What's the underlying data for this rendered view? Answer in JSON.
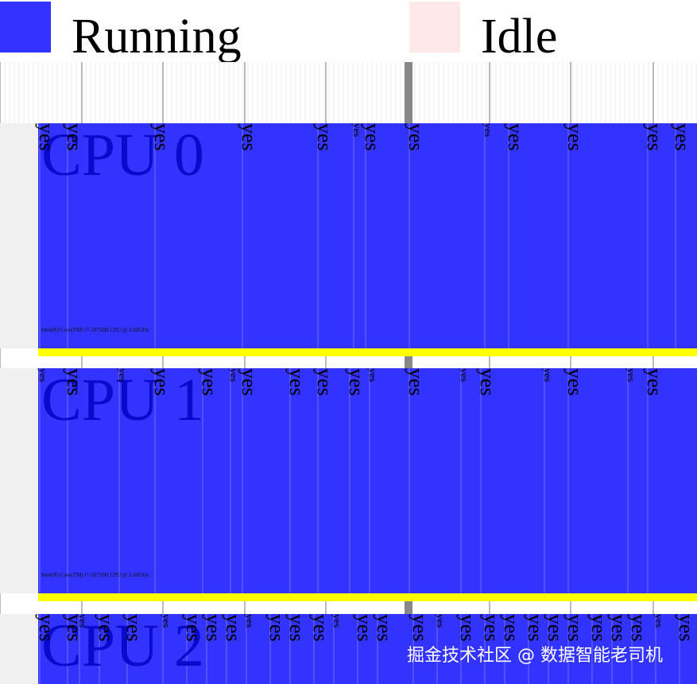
{
  "legend": [
    {
      "label": "Running",
      "color": "#3333ff"
    },
    {
      "label": "Idle",
      "color": "#ffe8e8"
    }
  ],
  "lanes": [
    {
      "label": "CPU 0",
      "info": "Intel(R) Core(TM) i7-10750H CPU @ 2.60GHz",
      "labels": [
        "yes",
        "yes",
        "yes",
        "yes",
        "yes",
        "yes",
        "yes",
        "yes",
        "yes",
        "yes",
        "yes",
        "yes",
        "yes"
      ]
    },
    {
      "label": "CPU 1",
      "info": "Intel(R) Core(TM) i7-10750H CPU @ 2.60GHz",
      "labels": [
        "yes",
        "yes",
        "yes",
        "yes",
        "yes",
        "yes",
        "yes",
        "yes",
        "yes",
        "yes",
        "yes",
        "yes",
        "yes",
        "yes",
        "yes",
        "yes",
        "yes",
        "yes"
      ]
    },
    {
      "label": "CPU 2",
      "labels": [
        "yes",
        "yes",
        "yes",
        "yes",
        "yes",
        "yes",
        "yes",
        "yes",
        "yes",
        "yes",
        "yes",
        "yes",
        "yes",
        "yes",
        "yes",
        "yes",
        "yes",
        "yes",
        "yes",
        "yes",
        "yes",
        "yes",
        "yes",
        "yes",
        "yes",
        "yes",
        "yes",
        "yes",
        "yes"
      ]
    }
  ],
  "watermark": "掘金技术社区 @ 数据智能老司机"
}
